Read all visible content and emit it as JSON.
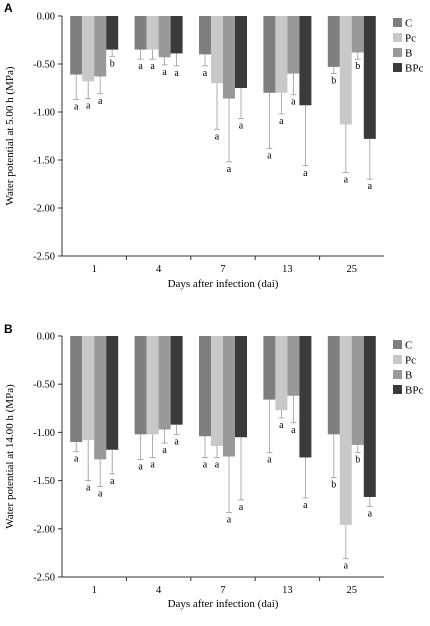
{
  "chart_data": [
    {
      "type": "bar",
      "panel": "A",
      "title": "",
      "xlabel": "Days after infection (dai)",
      "ylabel": "Water potential at 5.00 h (MPa)",
      "ylim": [
        -2.5,
        0
      ],
      "yticks": [
        "0.00",
        "-0.50",
        "-1.00",
        "-1.50",
        "-2.00",
        "-2.50"
      ],
      "categories": [
        "1",
        "4",
        "7",
        "13",
        "25"
      ],
      "legend_position": "right",
      "series": [
        {
          "name": "C",
          "color": "#7f7f7f",
          "values": [
            -0.61,
            -0.35,
            -0.4,
            -0.8,
            -0.53
          ],
          "errors": [
            0.26,
            0.1,
            0.12,
            0.58,
            0.07
          ],
          "letters": [
            "a",
            "a",
            "a",
            "a",
            "b"
          ]
        },
        {
          "name": "Pc",
          "color": "#c8c8c8",
          "values": [
            -0.68,
            -0.35,
            -0.7,
            -0.8,
            -1.13
          ],
          "errors": [
            0.18,
            0.1,
            0.48,
            0.22,
            0.5
          ],
          "letters": [
            "a",
            "a",
            "a",
            "a",
            "a"
          ]
        },
        {
          "name": "B",
          "color": "#999999",
          "values": [
            -0.63,
            -0.43,
            -0.86,
            -0.6,
            -0.38
          ],
          "errors": [
            0.18,
            0.08,
            0.66,
            0.22,
            0.07
          ],
          "letters": [
            "a",
            "a",
            "a",
            "a",
            "b"
          ]
        },
        {
          "name": "BPc",
          "color": "#3a3a3a",
          "values": [
            -0.35,
            -0.39,
            -0.75,
            -0.93,
            -1.28
          ],
          "errors": [
            0.07,
            0.13,
            0.32,
            0.63,
            0.42
          ],
          "letters": [
            "b",
            "a",
            "a",
            "a",
            "a"
          ]
        }
      ]
    },
    {
      "type": "bar",
      "panel": "B",
      "title": "",
      "xlabel": "Days after infection (dai)",
      "ylabel": "Water potential at 14.00 h (MPa)",
      "ylim": [
        -2.5,
        0
      ],
      "yticks": [
        "0.00",
        "-0.50",
        "-1.00",
        "-1.50",
        "-2.00",
        "-2.50"
      ],
      "categories": [
        "1",
        "4",
        "7",
        "13",
        "25"
      ],
      "legend_position": "right",
      "series": [
        {
          "name": "C",
          "color": "#7f7f7f",
          "values": [
            -1.1,
            -1.02,
            -1.04,
            -0.66,
            -1.02
          ],
          "errors": [
            0.1,
            0.26,
            0.22,
            0.55,
            0.45
          ],
          "letters": [
            "a",
            "a",
            "a",
            "a",
            "b"
          ]
        },
        {
          "name": "Pc",
          "color": "#c8c8c8",
          "values": [
            -1.08,
            -1.02,
            -1.14,
            -0.77,
            -1.96
          ],
          "errors": [
            0.42,
            0.24,
            0.12,
            0.08,
            0.35
          ],
          "letters": [
            "a",
            "a",
            "a",
            "a",
            "a"
          ]
        },
        {
          "name": "B",
          "color": "#999999",
          "values": [
            -1.28,
            -0.97,
            -1.25,
            -0.62,
            -1.13
          ],
          "errors": [
            0.28,
            0.14,
            0.58,
            0.28,
            0.08
          ],
          "letters": [
            "a",
            "a",
            "a",
            "a",
            "b"
          ]
        },
        {
          "name": "BPc",
          "color": "#3a3a3a",
          "values": [
            -1.18,
            -0.92,
            -1.05,
            -1.26,
            -1.67
          ],
          "errors": [
            0.25,
            0.1,
            0.65,
            0.42,
            0.1
          ],
          "letters": [
            "a",
            "a",
            "a",
            "a",
            "a"
          ]
        }
      ]
    }
  ]
}
